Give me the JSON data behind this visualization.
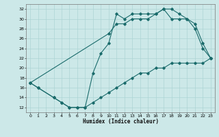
{
  "xlabel": "Humidex (Indice chaleur)",
  "xlim": [
    -0.5,
    23.5
  ],
  "ylim": [
    11,
    33
  ],
  "yticks": [
    12,
    14,
    16,
    18,
    20,
    22,
    24,
    26,
    28,
    30,
    32
  ],
  "xticks": [
    0,
    1,
    2,
    3,
    4,
    5,
    6,
    7,
    8,
    9,
    10,
    11,
    12,
    13,
    14,
    15,
    16,
    17,
    18,
    19,
    20,
    21,
    22,
    23
  ],
  "bg_color": "#cce8e8",
  "grid_color": "#add4d4",
  "line_color": "#1a6b6b",
  "line1_x": [
    0,
    1,
    3,
    4,
    5,
    6,
    7,
    8,
    9,
    10,
    11,
    12,
    13,
    14,
    15,
    16,
    17,
    18,
    19,
    20,
    21,
    22,
    23
  ],
  "line1_y": [
    17,
    16,
    14,
    13,
    12,
    12,
    12,
    19,
    23,
    25,
    31,
    30,
    31,
    31,
    31,
    31,
    32,
    32,
    31,
    30,
    29,
    25,
    22
  ],
  "line2_x": [
    0,
    1,
    3,
    4,
    5,
    6,
    7,
    8,
    9,
    10,
    11,
    12,
    13,
    14,
    15,
    16,
    17,
    18,
    19,
    20,
    21,
    22,
    23
  ],
  "line2_y": [
    17,
    16,
    14,
    13,
    12,
    12,
    12,
    13,
    14,
    15,
    16,
    17,
    18,
    19,
    19,
    20,
    20,
    21,
    21,
    21,
    21,
    21,
    22
  ],
  "line3_x": [
    0,
    10,
    11,
    12,
    13,
    14,
    15,
    16,
    17,
    18,
    19,
    20,
    21,
    22,
    23
  ],
  "line3_y": [
    17,
    27,
    29,
    29,
    30,
    30,
    30,
    31,
    32,
    30,
    30,
    30,
    28,
    24,
    22
  ]
}
